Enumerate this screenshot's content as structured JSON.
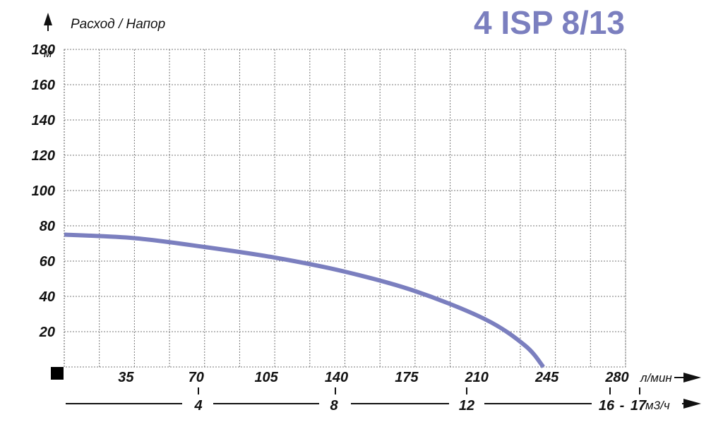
{
  "chart_data": {
    "type": "line",
    "title": "4 ISP 8/13",
    "ylabel": "Расход / Напор",
    "y_unit": "м",
    "x_unit": "л/мин",
    "x2_unit": "м3/ч",
    "xlim": [
      0,
      280
    ],
    "ylim": [
      0,
      180
    ],
    "x_ticks": [
      35,
      70,
      105,
      140,
      175,
      210,
      245,
      280
    ],
    "y_ticks": [
      20,
      40,
      60,
      80,
      100,
      120,
      140,
      160,
      180
    ],
    "x2_ticks": [
      {
        "label": "4",
        "value": 4
      },
      {
        "label": "8",
        "value": 8
      },
      {
        "label": "12",
        "value": 12
      },
      {
        "label": "16",
        "value": 16
      },
      {
        "label": "-",
        "value": null
      },
      {
        "label": "17",
        "value": 17
      }
    ],
    "grid": true,
    "series": [
      {
        "color": "#7b7fbf",
        "x": [
          0,
          35,
          70,
          105,
          140,
          175,
          210,
          230,
          239
        ],
        "y": [
          75,
          73,
          68,
          62,
          54,
          43,
          27,
          12,
          0
        ]
      }
    ]
  }
}
